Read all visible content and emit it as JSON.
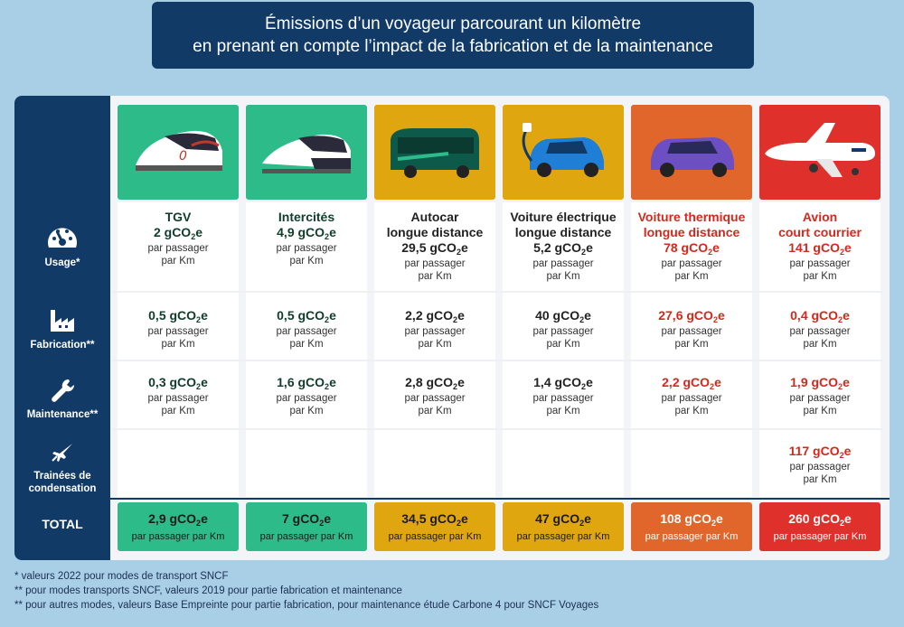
{
  "title": {
    "line1": "Émissions d’un voyageur parcourant un kilomètre",
    "line2": "en prenant en compte l’impact de la fabrication et de la maintenance"
  },
  "categories": {
    "usage": "Usage*",
    "fabrication": "Fabrication**",
    "maintenance": "Maintenance**",
    "trainees": [
      "Trainées de",
      "condensation"
    ],
    "total": "TOTAL"
  },
  "unit_prefix": "gCO",
  "unit_sub": "2",
  "unit_suffix": "e",
  "per_line1": "par passager",
  "per_line2": "par Km",
  "per_total": "par passager par Km",
  "colors": {
    "green": "#2dbb8a",
    "yellow": "#e0a610",
    "orange": "#e0662c",
    "red": "#e0302b",
    "navy": "#123a67",
    "darkgreen": "#0f3d2a",
    "darkred": "#d3291d"
  },
  "modes": [
    {
      "name": [
        "TGV"
      ],
      "usage": "2",
      "fabrication": "0,5",
      "maintenance": "0,3",
      "trainees": "",
      "total": "2,9",
      "icon": "tgv-icon"
    },
    {
      "name": [
        "Intercités"
      ],
      "usage": "4,9",
      "fabrication": "0,5",
      "maintenance": "1,6",
      "trainees": "",
      "total": "7",
      "icon": "intercites-train-icon"
    },
    {
      "name": [
        "Autocar",
        "longue distance"
      ],
      "usage": "29,5",
      "fabrication": "2,2",
      "maintenance": "2,8",
      "trainees": "",
      "total": "34,5",
      "icon": "coach-bus-icon"
    },
    {
      "name": [
        "Voiture électrique",
        "longue distance"
      ],
      "usage": "5,2",
      "fabrication": "40",
      "maintenance": "1,4",
      "trainees": "",
      "total": "47",
      "icon": "electric-car-icon"
    },
    {
      "name": [
        "Voiture thermique",
        "longue distance"
      ],
      "usage": "78",
      "fabrication": "27,6",
      "maintenance": "2,2",
      "trainees": "",
      "total": "108",
      "icon": "thermal-car-icon"
    },
    {
      "name": [
        "Avion",
        "court courrier"
      ],
      "usage": "141",
      "fabrication": "0,4",
      "maintenance": "1,9",
      "trainees": "117",
      "total": "260",
      "icon": "airplane-icon"
    }
  ],
  "footnotes": [
    "* valeurs 2022 pour modes de transport SNCF",
    "** pour modes transports SNCF, valeurs 2019 pour partie fabrication et maintenance",
    "** pour autres modes, valeurs Base Empreinte pour partie fabrication, pour maintenance étude Carbone 4 pour SNCF Voyages"
  ]
}
